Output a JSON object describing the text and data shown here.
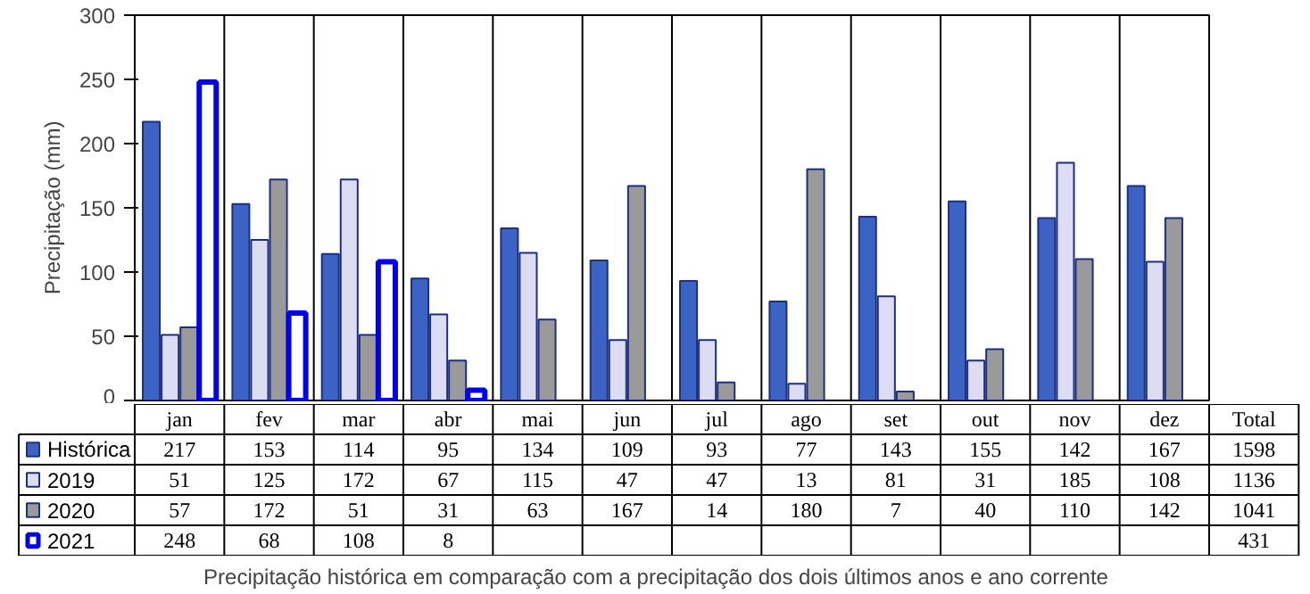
{
  "chart_data": {
    "type": "bar",
    "title": "Precipitação histórica em comparação com a precipitação dos dois últimos anos e ano corrente",
    "ylabel": "Precipitação (mm)",
    "categories": [
      "jan",
      "fev",
      "mar",
      "abr",
      "mai",
      "jun",
      "jul",
      "ago",
      "set",
      "out",
      "nov",
      "dez"
    ],
    "series": [
      {
        "name": "Histórica",
        "color": "#3b63c4",
        "values": [
          217,
          153,
          114,
          95,
          134,
          109,
          93,
          77,
          143,
          155,
          142,
          167
        ]
      },
      {
        "name": "2019",
        "color": "#dcdcf2",
        "values": [
          51,
          125,
          172,
          67,
          115,
          47,
          47,
          13,
          81,
          31,
          185,
          108
        ]
      },
      {
        "name": "2020",
        "color": "#9a9a9a",
        "values": [
          57,
          172,
          51,
          31,
          63,
          167,
          14,
          180,
          7,
          40,
          110,
          142
        ]
      },
      {
        "name": "2021",
        "color": "#0000ee",
        "values": [
          248,
          68,
          108,
          8,
          null,
          null,
          null,
          null,
          null,
          null,
          null,
          null
        ]
      }
    ],
    "legend": "bottom left",
    "ylim": [
      0,
      300
    ],
    "yticks": [
      0,
      50,
      100,
      150,
      200,
      250,
      300
    ],
    "grid": false,
    "data_labels": true,
    "annotations": [
      "Total",
      "1598",
      "1136",
      "1041",
      "431"
    ]
  }
}
